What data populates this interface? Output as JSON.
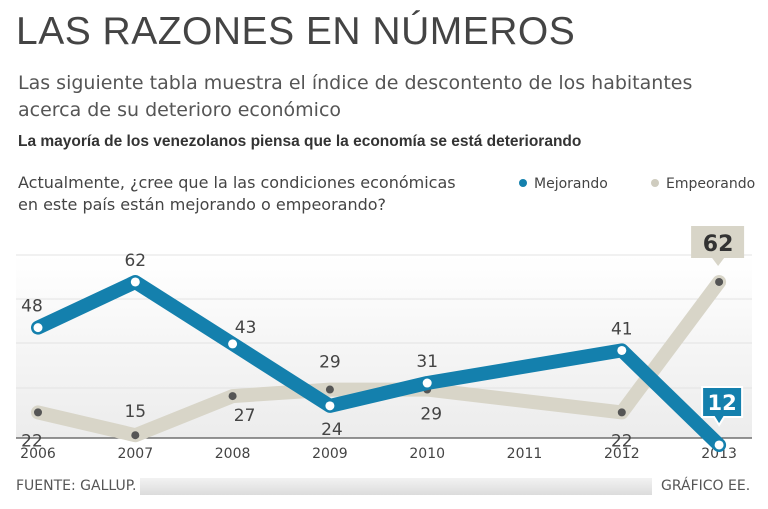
{
  "header": {
    "title": "LAS RAZONES EN NÚMEROS",
    "subtitle": "Las siguiente tabla muestra el índice de descontento de los habitantes acerca de su deterioro económico",
    "headline": "La mayoría de los venezolanos piensa que la economía se está deteriorando",
    "question": "Actualmente, ¿cree que la las condiciones económicas en este país están mejorando o empeorando?"
  },
  "colors": {
    "mejorando": "#1480ad",
    "empeorando": "#d8d5c8",
    "grid": "#e3e3e3",
    "marker": "#555555"
  },
  "chart_data": {
    "type": "line",
    "title": "La mayoría de los venezolanos piensa que la economía se está deteriorando",
    "categories": [
      "2006",
      "2007",
      "2008",
      "2009",
      "2010",
      "2011",
      "2012",
      "2013"
    ],
    "series": [
      {
        "name": "Mejorando",
        "key": "mejorando",
        "values": [
          48,
          62,
          43,
          24,
          31,
          null,
          41,
          12
        ]
      },
      {
        "name": "Empeorando",
        "key": "empeorando",
        "values": [
          22,
          15,
          27,
          29,
          29,
          null,
          22,
          62
        ]
      }
    ],
    "highlight": {
      "mejorando": "12",
      "empeorando": "62"
    },
    "ylim": [
      10,
      75
    ],
    "grid": true,
    "legend": "top-right",
    "xlabel": "",
    "ylabel": ""
  },
  "footer": {
    "source": "FUENTE: GALLUP.",
    "credit": "GRÁFICO EE."
  }
}
